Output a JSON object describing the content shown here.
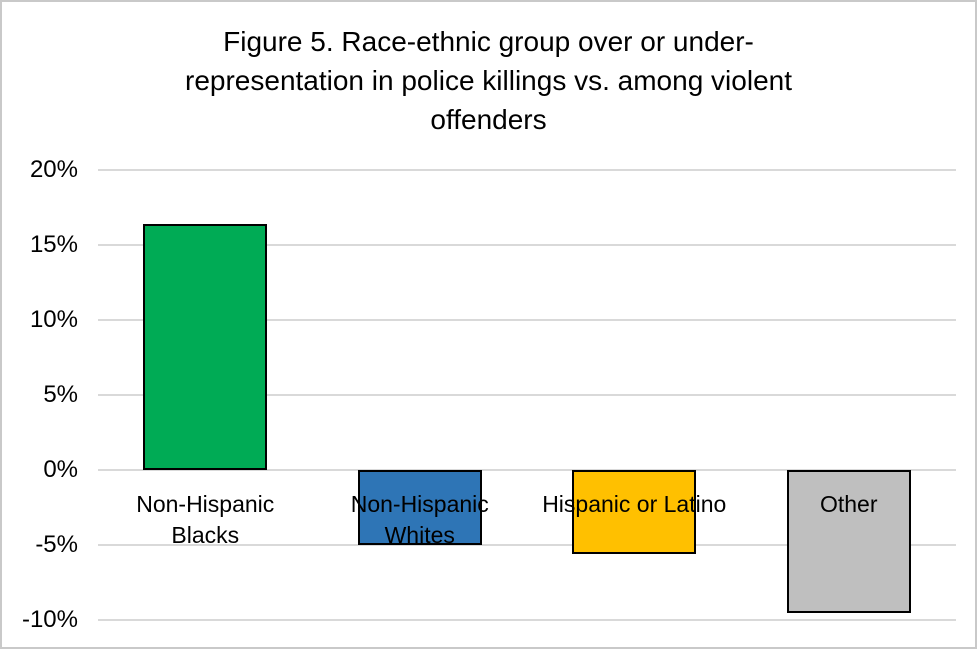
{
  "chart_data": {
    "type": "bar",
    "title": "Figure 5. Race-ethnic group over or under-representation in police killings vs. among violent offenders",
    "categories": [
      "Non-Hispanic Blacks",
      "Non-Hispanic Whites",
      "Hispanic or Latino",
      "Other"
    ],
    "values": [
      16.4,
      -5.0,
      -5.6,
      -9.5
    ],
    "value_unit": "%",
    "series_colors": [
      "#00AB55",
      "#2E75B6",
      "#FFC000",
      "#BFBFBF"
    ],
    "bar_patterns": [
      "solid",
      "solid",
      "solid",
      "stipple"
    ],
    "bar_border_color": "#000000",
    "ylim": [
      -10,
      20
    ],
    "ytick_step": 5,
    "ytick_labels": [
      "20%",
      "15%",
      "10%",
      "5%",
      "0%",
      "-5%",
      "-10%"
    ],
    "grid": true,
    "gridline_color": "#D9D9D9",
    "legend_position": "none",
    "xlabel": "",
    "ylabel": "",
    "text_color": "#000000",
    "background_color": "#FFFFFF",
    "frame_border_color": "#C9C9C9"
  }
}
